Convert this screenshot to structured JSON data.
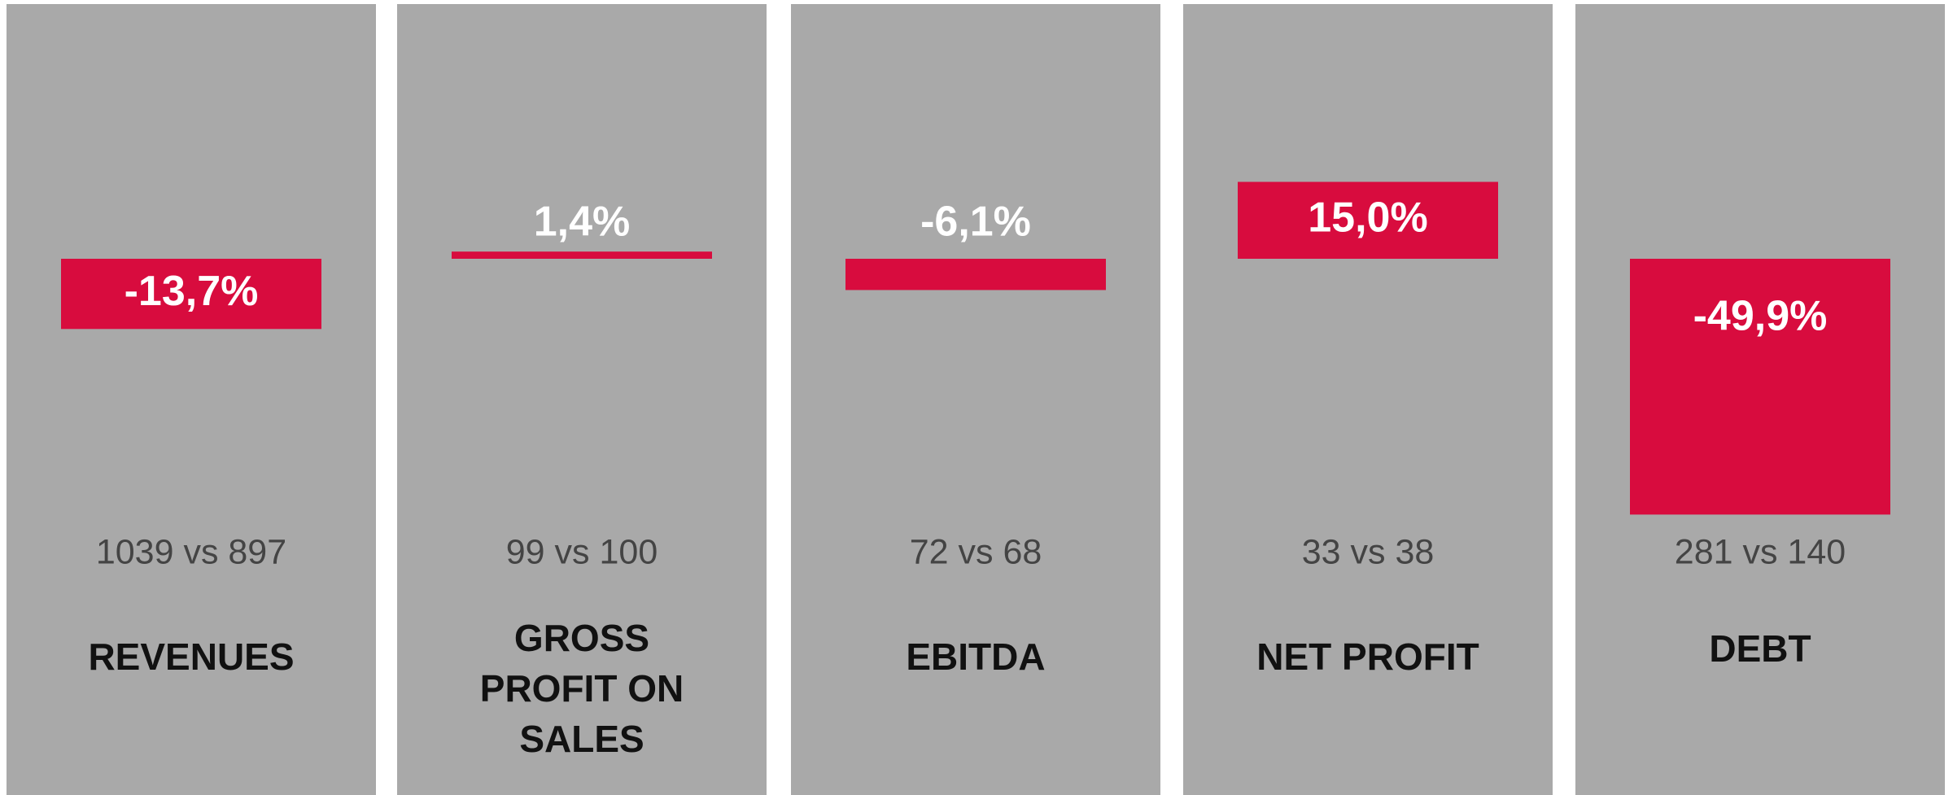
{
  "chart_data": {
    "type": "bar",
    "categories": [
      "REVENUES",
      "GROSS PROFIT ON SALES",
      "EBITDA",
      "NET PROFIT",
      "DEBT"
    ],
    "values": [
      -13.7,
      1.4,
      -6.1,
      15.0,
      -49.9
    ],
    "value_labels": [
      "-13,7%",
      "1,4%",
      "-6,1%",
      "15,0%",
      "-49,9%"
    ],
    "comparisons": [
      "1039 vs 897",
      "99 vs 100",
      "72 vs 68",
      "33 vs 38",
      "281 vs 140"
    ],
    "color": "#d80c3e"
  }
}
